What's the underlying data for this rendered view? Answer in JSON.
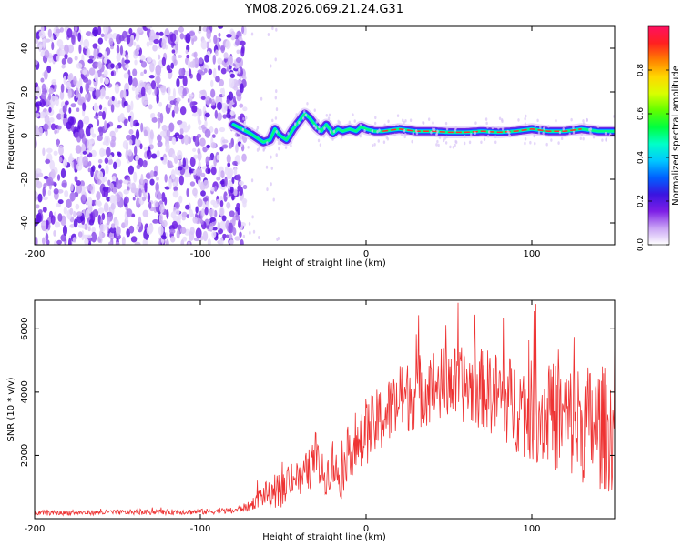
{
  "title": "YM08.2026.069.21.24.G31",
  "chart_data": [
    {
      "type": "heatmap",
      "name": "spectrogram",
      "xlabel": "Height of straight line (km)",
      "ylabel": "Frequency (Hz)",
      "xlim": [
        -200,
        150
      ],
      "ylim": [
        -50,
        50
      ],
      "xticks": [
        -200,
        -100,
        0,
        100
      ],
      "xtick_labels": [
        "-200",
        "-100",
        "0",
        "100"
      ],
      "yticks": [
        -40,
        -20,
        0,
        20,
        40
      ],
      "ytick_labels": [
        "-40",
        "-20",
        "0",
        "20",
        "40"
      ],
      "noise_region_xlim": [
        -200,
        -77
      ],
      "ridge": {
        "x": [
          -80,
          -75,
          -70,
          -66,
          -62,
          -58,
          -55,
          -52,
          -48,
          -44,
          -40,
          -37,
          -34,
          -30,
          -27,
          -24,
          -20,
          -17,
          -14,
          -10,
          -6,
          -3,
          0,
          5,
          10,
          20,
          30,
          40,
          50,
          60,
          70,
          80,
          90,
          100,
          110,
          120,
          130,
          140,
          150
        ],
        "y": [
          5,
          3,
          1,
          -1,
          -3,
          -2,
          3,
          0,
          -2,
          3,
          7,
          10,
          8,
          4,
          2,
          5,
          1,
          3,
          2,
          3,
          2,
          4,
          3,
          2,
          2,
          3,
          2,
          2,
          1.5,
          1.5,
          2,
          1.5,
          2,
          3,
          2,
          2,
          3,
          2,
          2
        ]
      },
      "colorbar": {
        "label": "Normalized spectral amplitude",
        "range": [
          0,
          1
        ],
        "ticks": [
          0.0,
          0.2,
          0.4,
          0.6,
          0.8
        ],
        "tick_labels": [
          "0.0",
          "0.2",
          "0.4",
          "0.6",
          "0.8"
        ],
        "colormap": [
          "#ffffff",
          "#c9a3f5",
          "#7d1ee6",
          "#3a14e0",
          "#0060ff",
          "#00c8ff",
          "#00ffc8",
          "#00ff40",
          "#60ff00",
          "#d8ff00",
          "#ffd800",
          "#ff8000",
          "#ff2020",
          "#ff1060"
        ]
      }
    },
    {
      "type": "line",
      "name": "snr",
      "xlabel": "Height of straight line (km)",
      "ylabel": "SNR (10 * v/v)",
      "xlim": [
        -200,
        150
      ],
      "ylim": [
        0,
        6900
      ],
      "xticks": [
        -200,
        -100,
        0,
        100
      ],
      "xtick_labels": [
        "-200",
        "-100",
        "0",
        "100"
      ],
      "yticks": [
        2000,
        4000,
        6000
      ],
      "ytick_labels": [
        "2000",
        "4000",
        "6000"
      ],
      "color": "#ee3333",
      "envelope": {
        "x": [
          -200,
          -150,
          -100,
          -80,
          -70,
          -65,
          -60,
          -55,
          -50,
          -45,
          -40,
          -35,
          -30,
          -25,
          -20,
          -15,
          -10,
          -5,
          0,
          10,
          20,
          30,
          40,
          50,
          60,
          70,
          80,
          90,
          100,
          110,
          120,
          130,
          140,
          150
        ],
        "mean": [
          180,
          200,
          220,
          250,
          400,
          650,
          800,
          600,
          900,
          1400,
          1200,
          1500,
          1800,
          1300,
          1700,
          1200,
          2300,
          2100,
          2700,
          3200,
          3700,
          4000,
          4200,
          4300,
          4200,
          4100,
          3900,
          3600,
          3400,
          3300,
          3100,
          3000,
          2900,
          2800
        ],
        "amplitude": [
          80,
          80,
          90,
          100,
          150,
          300,
          400,
          400,
          500,
          600,
          600,
          700,
          700,
          600,
          700,
          600,
          900,
          900,
          1000,
          1100,
          1100,
          1200,
          1200,
          1200,
          1200,
          1300,
          1400,
          1500,
          1600,
          1700,
          1800,
          1900,
          2000,
          2000
        ]
      }
    }
  ]
}
